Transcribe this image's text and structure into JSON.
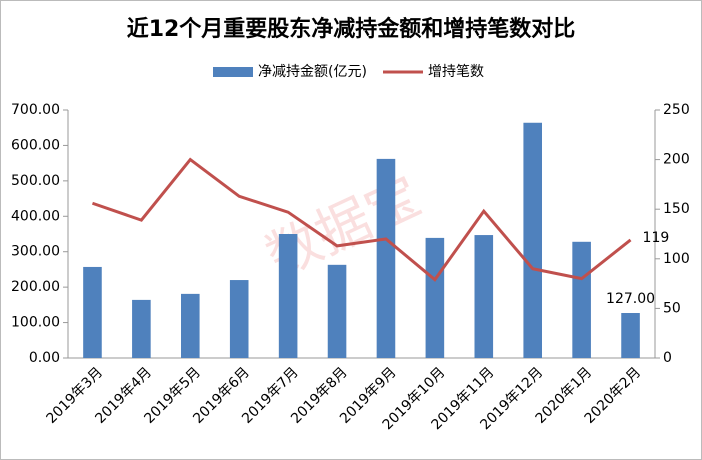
{
  "chart_data": {
    "type": "bar-line",
    "title": "近12个月重要股东净减持金额和增持笔数对比",
    "watermark": "数据宝",
    "categories": [
      "2019年3月",
      "2019年4月",
      "2019年5月",
      "2019年6月",
      "2019年7月",
      "2019年8月",
      "2019年9月",
      "2019年10月",
      "2019年11月",
      "2019年12月",
      "2020年1月",
      "2020年2月"
    ],
    "series": [
      {
        "name": "净减持金额(亿元)",
        "type": "bar",
        "color": "#4f81bd",
        "values": [
          257,
          164,
          181,
          220,
          350,
          263,
          562,
          339,
          347,
          664,
          328,
          127
        ],
        "value_labels": [
          null,
          null,
          null,
          null,
          null,
          null,
          null,
          null,
          null,
          null,
          null,
          "127.00"
        ]
      },
      {
        "name": "增持笔数",
        "type": "line",
        "axis": "y2",
        "color": "#c0504d",
        "values": [
          156,
          139,
          200,
          163,
          147,
          113,
          120,
          79,
          148,
          90,
          80,
          119
        ],
        "value_labels": [
          null,
          null,
          null,
          null,
          null,
          null,
          null,
          null,
          null,
          null,
          null,
          "119"
        ]
      }
    ],
    "ylim": [
      0,
      700
    ],
    "yticks": [
      {
        "value": 0,
        "label": "0.00"
      },
      {
        "value": 100,
        "label": "100.00"
      },
      {
        "value": 200,
        "label": "200.00"
      },
      {
        "value": 300,
        "label": "300.00"
      },
      {
        "value": 400,
        "label": "400.00"
      },
      {
        "value": 500,
        "label": "500.00"
      },
      {
        "value": 600,
        "label": "600.00"
      },
      {
        "value": 700,
        "label": "700.00"
      }
    ],
    "y2lim": [
      0,
      250
    ],
    "y2ticks": [
      0,
      50,
      100,
      150,
      200,
      250
    ],
    "grid": false
  }
}
